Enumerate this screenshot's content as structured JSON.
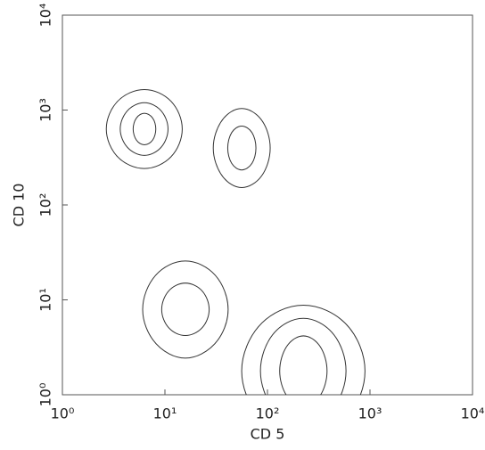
{
  "chart_data": {
    "type": "contour",
    "xlabel": "CD 5",
    "ylabel": "CD 10",
    "xscale": "log",
    "yscale": "log",
    "color": "#333333",
    "xlim": [
      1,
      10000
    ],
    "ylim": [
      1,
      10000
    ],
    "xticks": [
      {
        "value": 1,
        "label": "10⁰"
      },
      {
        "value": 10,
        "label": "10¹"
      },
      {
        "value": 100,
        "label": "10²"
      },
      {
        "value": 1000,
        "label": "10³"
      },
      {
        "value": 10000,
        "label": "10⁴"
      }
    ],
    "yticks": [
      {
        "value": 1,
        "label": "10⁰"
      },
      {
        "value": 10,
        "label": "10¹"
      },
      {
        "value": 100,
        "label": "10²"
      },
      {
        "value": 1000,
        "label": "10³"
      },
      {
        "value": 10000,
        "label": "10⁴"
      }
    ],
    "contours": [
      {
        "x": [
          15.8,
          12.0,
          6.3,
          3.3,
          2.5,
          3.3,
          6.3,
          12.0
        ],
        "y": [
          631,
          1303,
          1778,
          1303,
          631,
          305,
          224,
          305
        ]
      },
      {
        "x": [
          11.2,
          9.4,
          6.3,
          4.2,
          3.5,
          4.2,
          6.3,
          9.4
        ],
        "y": [
          631,
          1023,
          1259,
          1023,
          631,
          389,
          316,
          389
        ]
      },
      {
        "x": [
          8.3,
          7.7,
          6.3,
          5.2,
          4.8,
          5.2,
          6.3,
          7.7
        ],
        "y": [
          631,
          843,
          955,
          843,
          631,
          472,
          417,
          472
        ]
      },
      {
        "x": [
          112,
          91,
          56,
          35,
          28,
          35,
          56,
          91
        ],
        "y": [
          398,
          822,
          1122,
          822,
          398,
          193,
          141,
          193
        ]
      },
      {
        "x": [
          79,
          72,
          56,
          44,
          40,
          44,
          56,
          72
        ],
        "y": [
          398,
          596,
          708,
          596,
          398,
          266,
          224,
          266
        ]
      },
      {
        "x": [
          44.7,
          32.7,
          15.8,
          7.7,
          5.6,
          7.7,
          15.8,
          32.7
        ],
        "y": [
          7.9,
          19.3,
          28.2,
          19.3,
          7.9,
          3.3,
          2.2,
          3.3
        ]
      },
      {
        "x": [
          28.2,
          23.7,
          15.8,
          10.6,
          8.9,
          10.6,
          15.8,
          23.7
        ],
        "y": [
          7.9,
          12.9,
          15.8,
          12.9,
          7.9,
          4.9,
          4.0,
          4.9
        ]
      },
      {
        "x": [
          1000,
          638,
          224,
          79,
          50,
          79,
          224,
          638
        ],
        "y": [
          1.78,
          5.96,
          10,
          5.96,
          1.78,
          0.53,
          0.32,
          0.53
        ]
      },
      {
        "x": [
          631,
          462,
          224,
          108,
          79,
          108,
          224,
          462
        ],
        "y": [
          1.78,
          4.68,
          7.08,
          4.68,
          1.78,
          0.68,
          0.45,
          0.68
        ]
      },
      {
        "x": [
          398,
          335,
          224,
          150,
          126,
          150,
          224,
          335
        ],
        "y": [
          1.78,
          3.39,
          4.47,
          3.39,
          1.78,
          0.93,
          0.71,
          0.93
        ]
      }
    ]
  }
}
